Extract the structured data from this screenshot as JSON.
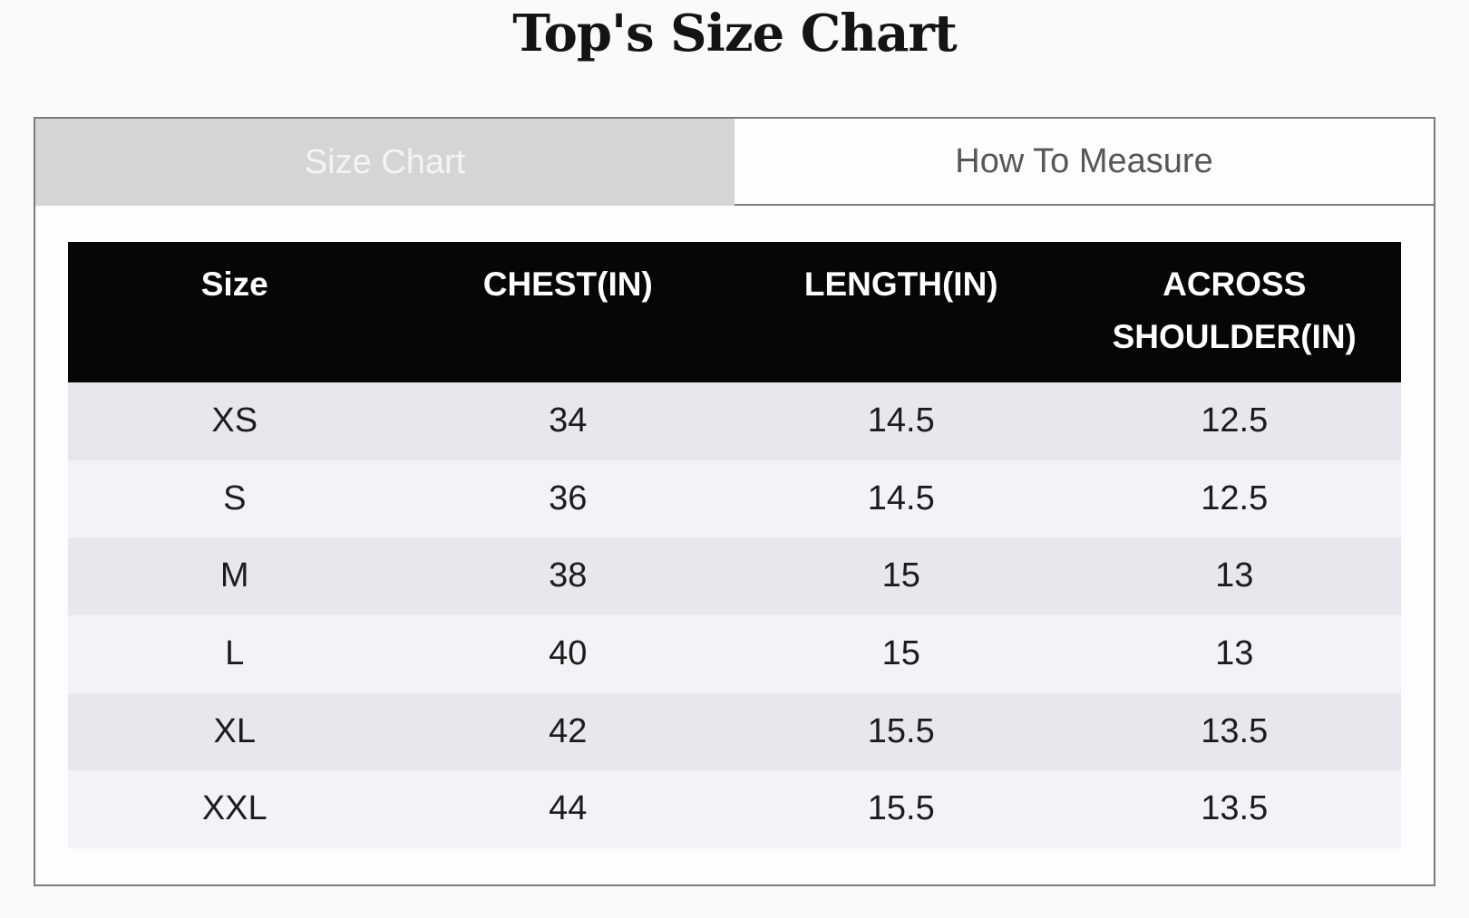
{
  "page": {
    "title": "Top's Size Chart"
  },
  "tabs": {
    "size_chart": {
      "label": "Size Chart",
      "active": true
    },
    "how_to_measure": {
      "label": "How To Measure",
      "active": false
    }
  },
  "chart_data": {
    "type": "table",
    "title": "Top's Size Chart",
    "columns": [
      "Size",
      "CHEST(IN)",
      "LENGTH(IN)",
      "ACROSS SHOULDER(IN)"
    ],
    "rows": [
      [
        "XS",
        "34",
        "14.5",
        "12.5"
      ],
      [
        "S",
        "36",
        "14.5",
        "12.5"
      ],
      [
        "M",
        "38",
        "15",
        "13"
      ],
      [
        "L",
        "40",
        "15",
        "13"
      ],
      [
        "XL",
        "42",
        "15.5",
        "13.5"
      ],
      [
        "XXL",
        "44",
        "15.5",
        "13.5"
      ]
    ]
  },
  "colors": {
    "page_background": "#fafafa",
    "panel_background": "#fdfdfd",
    "panel_border": "#7b7b7b",
    "active_tab_background": "#d5d5d5",
    "active_tab_text": "#f4f4f4",
    "inactive_tab_text": "#56575a",
    "table_header_background": "#060606",
    "table_header_text": "#ffffff",
    "row_odd_background": "#e6e8ee",
    "row_even_background": "#f2f3f6",
    "cell_text": "#1c1c1c"
  }
}
